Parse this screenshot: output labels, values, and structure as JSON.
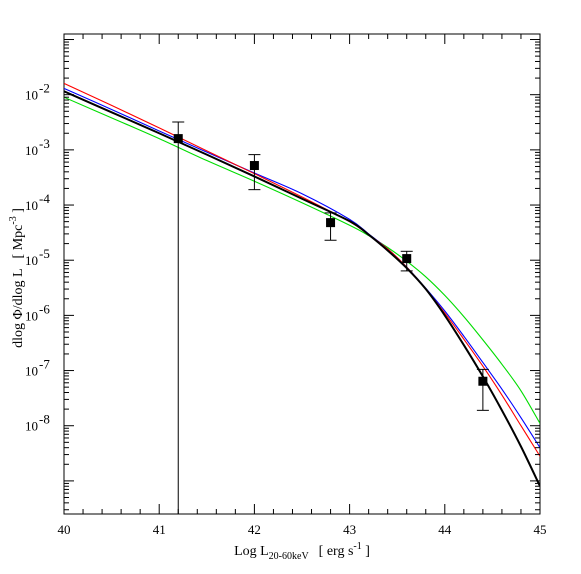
{
  "chart_data": {
    "type": "line",
    "title": "",
    "xlabel": {
      "prefix": "Log L",
      "subscript": "20-60keV",
      "unit": "[ erg s",
      "unit_exp": "-1",
      "unit_close": " ]"
    },
    "ylabel": {
      "text": "dlog Φ/dlog L",
      "unit": "[ Mpc",
      "unit_exp": "-3",
      "unit_close": " ]"
    },
    "xlim": [
      40,
      45
    ],
    "ylim_log10": [
      -9.6,
      -0.9
    ],
    "yscale": "log",
    "x_ticks": [
      "40",
      "41",
      "42",
      "43",
      "44",
      "45"
    ],
    "y_ticks": [
      {
        "base": "10",
        "exp": "-2",
        "log10": -2
      },
      {
        "base": "10",
        "exp": "-3",
        "log10": -3
      },
      {
        "base": "10",
        "exp": "-4",
        "log10": -4
      },
      {
        "base": "10",
        "exp": "-5",
        "log10": -5
      },
      {
        "base": "10",
        "exp": "-6",
        "log10": -6
      },
      {
        "base": "10",
        "exp": "-7",
        "log10": -7
      },
      {
        "base": "10",
        "exp": "-8",
        "log10": -8
      }
    ],
    "grid": false,
    "legend": "none",
    "points": [
      {
        "x": 41.2,
        "y": 0.0016,
        "yerr_low": 1e-12,
        "yerr_high": 0.0032
      },
      {
        "x": 42.0,
        "y": 0.00052,
        "yerr_low": 0.00019,
        "yerr_high": 0.00082
      },
      {
        "x": 42.8,
        "y": 4.8e-05,
        "yerr_low": 2.3e-05,
        "yerr_high": 7.2e-05
      },
      {
        "x": 43.6,
        "y": 1.07e-05,
        "yerr_low": 6.4e-06,
        "yerr_high": 1.45e-05
      },
      {
        "x": 44.4,
        "y": 6.4e-08,
        "yerr_low": 1.9e-08,
        "yerr_high": 1.05e-07
      }
    ],
    "series": [
      {
        "color": "#00dd00",
        "x": [
          40.0,
          40.5,
          41.0,
          41.5,
          42.0,
          42.5,
          43.0,
          43.2,
          43.4,
          43.6,
          43.8,
          44.0,
          44.2,
          44.4,
          44.6,
          44.8,
          45.0
        ],
        "y": [
          0.009,
          0.0038,
          0.0016,
          0.00064,
          0.00027,
          0.00011,
          4.3e-05,
          2.8e-05,
          1.7e-05,
          9.6e-06,
          5e-06,
          2.3e-06,
          9.5e-07,
          3.6e-07,
          1.3e-07,
          4.3e-08,
          1.1e-08
        ]
      },
      {
        "color": "#0000ff",
        "x": [
          40.0,
          40.5,
          41.0,
          41.5,
          42.0,
          42.5,
          43.0,
          43.2,
          43.4,
          43.6,
          43.8,
          44.0,
          44.2,
          44.4,
          44.6,
          44.8,
          45.0
        ],
        "y": [
          0.013,
          0.0054,
          0.0022,
          0.00091,
          0.00038,
          0.00016,
          5.5e-05,
          3e-05,
          1.6e-05,
          7.5e-06,
          3.1e-06,
          1.2e-06,
          4.2e-07,
          1.4e-07,
          4.6e-08,
          1.4e-08,
          4e-09
        ]
      },
      {
        "color": "#ff0000",
        "x": [
          40.0,
          40.5,
          41.0,
          41.5,
          42.0,
          42.5,
          43.0,
          43.2,
          43.4,
          43.6,
          43.8,
          44.0,
          44.2,
          44.4,
          44.6,
          44.8,
          45.0
        ],
        "y": [
          0.016,
          0.0064,
          0.0025,
          0.00096,
          0.00037,
          0.00014,
          5e-05,
          2.9e-05,
          1.6e-05,
          7.5e-06,
          3e-06,
          1.1e-06,
          3.7e-07,
          1.2e-07,
          3.6e-08,
          1e-08,
          2.8e-09
        ]
      },
      {
        "color": "#000000",
        "x": [
          40.0,
          40.5,
          41.0,
          41.5,
          42.0,
          42.5,
          43.0,
          43.2,
          43.4,
          43.6,
          43.8,
          44.0,
          44.2,
          44.4,
          44.6,
          44.8,
          45.0
        ],
        "y": [
          0.0115,
          0.0048,
          0.002,
          0.00082,
          0.00033,
          0.00013,
          5.1e-05,
          2.9e-05,
          1.5e-05,
          7.2e-06,
          3e-06,
          1e-06,
          2.9e-07,
          7.8e-08,
          1.9e-08,
          4.2e-09,
          8e-10
        ]
      }
    ]
  }
}
